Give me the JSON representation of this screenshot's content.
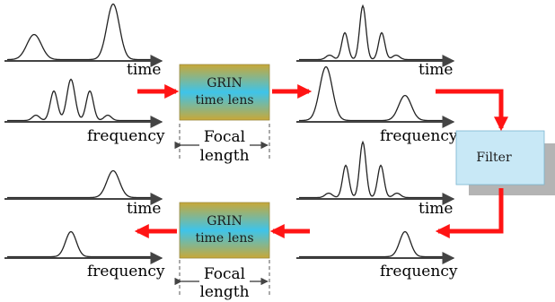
{
  "labels": {
    "time": "time",
    "frequency": "frequency",
    "focal_line1": "Focal",
    "focal_line2": "length",
    "lens_line1": "GRIN",
    "lens_line2": "time lens",
    "filter": "Filter"
  },
  "colors": {
    "arrow": "#ff1414",
    "axis": "#444444",
    "lens_top": "#c8a838",
    "lens_mid": "#3ec4ea",
    "filter_box": "#c8e8f6",
    "filter_shadow": "#b4b4b4"
  }
}
